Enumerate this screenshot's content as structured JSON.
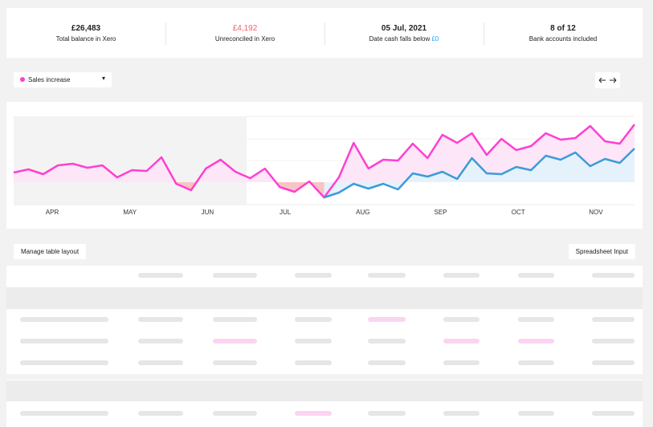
{
  "stats": [
    {
      "value": "£26,483",
      "label": "Total balance in Xero"
    },
    {
      "value": "£4,192",
      "label": "Unreconciled in Xero"
    },
    {
      "value": "05 Jul, 2021",
      "label": "Date cash falls below",
      "highlight": "£0"
    },
    {
      "value": "8 of 12",
      "label": "Bank accounts included"
    }
  ],
  "selector": {
    "label": "Sales increase",
    "color": "#ff3fd2"
  },
  "chart_data": {
    "type": "line",
    "months": [
      "APR",
      "MAY",
      "JUN",
      "JUL",
      "AUG",
      "SEP",
      "OCT",
      "NOV"
    ],
    "ylim": [
      -28,
      82
    ],
    "series": [
      {
        "color": "#ff3fd2",
        "values": [
          12,
          16,
          10,
          21,
          23,
          18,
          21,
          6,
          15,
          14,
          31,
          -2,
          -10,
          17,
          28,
          13,
          5,
          17,
          -6,
          -12,
          1,
          -19,
          6,
          49,
          17,
          28,
          27,
          48,
          30,
          59,
          49,
          61,
          34,
          54,
          40,
          45,
          61,
          53,
          55,
          70,
          51,
          48,
          72
        ]
      },
      {
        "color": "#3d9bd9",
        "values": [
          null,
          null,
          null,
          null,
          null,
          null,
          null,
          null,
          null,
          null,
          null,
          null,
          null,
          null,
          null,
          null,
          null,
          null,
          null,
          null,
          null,
          -19,
          -13,
          -2,
          -8,
          -2,
          -9,
          11,
          7,
          13,
          4,
          30,
          11,
          10,
          19,
          15,
          33,
          28,
          37,
          20,
          29,
          24,
          42
        ]
      }
    ]
  },
  "buttons": {
    "left": "Manage table layout",
    "right": "Spreadsheet Input"
  }
}
